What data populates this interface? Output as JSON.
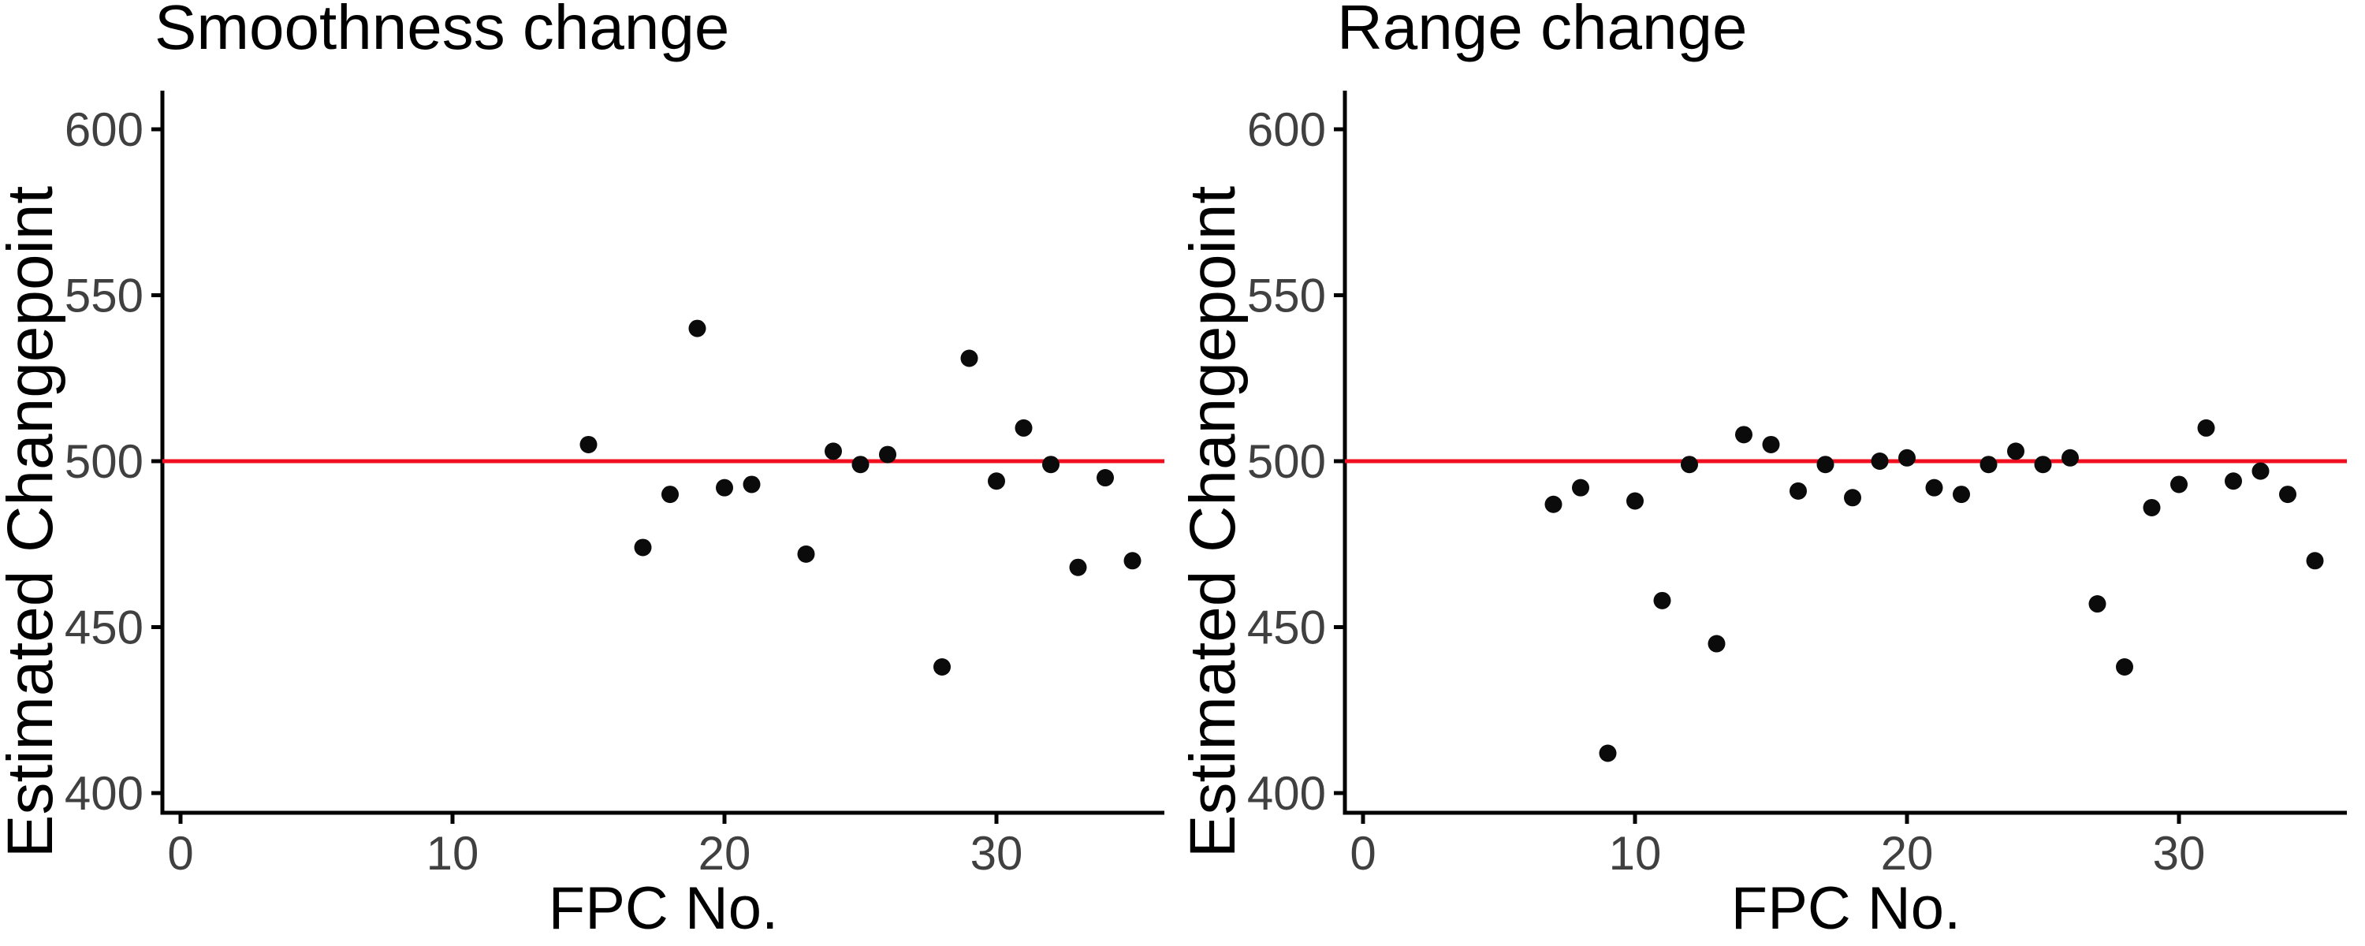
{
  "figure": {
    "background": "#ffffff",
    "point_color": "#0b0b0b",
    "axis_color": "#000000",
    "tick_label_color": "#404040",
    "text_color": "#000000",
    "reference_line_color": "#f10e1e",
    "x_label": "FPC No.",
    "y_label": "Estimated Changepoint"
  },
  "chart_data": [
    {
      "type": "scatter",
      "title": "Smoothness change",
      "xlabel": "FPC No.",
      "ylabel": "Estimated Changepoint",
      "x_ticks": [
        0,
        10,
        20,
        30
      ],
      "y_ticks": [
        400,
        450,
        500,
        550,
        600
      ],
      "xlim": [
        -0.7,
        36.2
      ],
      "ylim": [
        394,
        612
      ],
      "grid": false,
      "legend": false,
      "reference_line_y": 500,
      "points": [
        {
          "x": 15,
          "y": 505
        },
        {
          "x": 17,
          "y": 474
        },
        {
          "x": 18,
          "y": 490
        },
        {
          "x": 19,
          "y": 540
        },
        {
          "x": 20,
          "y": 492
        },
        {
          "x": 21,
          "y": 493
        },
        {
          "x": 23,
          "y": 472
        },
        {
          "x": 24,
          "y": 503
        },
        {
          "x": 25,
          "y": 499
        },
        {
          "x": 26,
          "y": 502
        },
        {
          "x": 28,
          "y": 438
        },
        {
          "x": 29,
          "y": 531
        },
        {
          "x": 30,
          "y": 494
        },
        {
          "x": 31,
          "y": 510
        },
        {
          "x": 32,
          "y": 499
        },
        {
          "x": 33,
          "y": 468
        },
        {
          "x": 34,
          "y": 495
        },
        {
          "x": 35,
          "y": 470
        }
      ]
    },
    {
      "type": "scatter",
      "title": "Range change",
      "xlabel": "FPC No.",
      "ylabel": "Estimated Changepoint",
      "x_ticks": [
        0,
        10,
        20,
        30
      ],
      "y_ticks": [
        400,
        450,
        500,
        550,
        600
      ],
      "xlim": [
        -0.7,
        36.2
      ],
      "ylim": [
        394,
        612
      ],
      "grid": false,
      "legend": false,
      "reference_line_y": 500,
      "points": [
        {
          "x": 7,
          "y": 487
        },
        {
          "x": 8,
          "y": 492
        },
        {
          "x": 9,
          "y": 412
        },
        {
          "x": 10,
          "y": 488
        },
        {
          "x": 11,
          "y": 458
        },
        {
          "x": 12,
          "y": 499
        },
        {
          "x": 13,
          "y": 445
        },
        {
          "x": 14,
          "y": 508
        },
        {
          "x": 15,
          "y": 505
        },
        {
          "x": 16,
          "y": 491
        },
        {
          "x": 17,
          "y": 499
        },
        {
          "x": 18,
          "y": 489
        },
        {
          "x": 19,
          "y": 500
        },
        {
          "x": 20,
          "y": 501
        },
        {
          "x": 21,
          "y": 492
        },
        {
          "x": 22,
          "y": 490
        },
        {
          "x": 23,
          "y": 499
        },
        {
          "x": 24,
          "y": 503
        },
        {
          "x": 25,
          "y": 499
        },
        {
          "x": 26,
          "y": 501
        },
        {
          "x": 27,
          "y": 457
        },
        {
          "x": 28,
          "y": 438
        },
        {
          "x": 29,
          "y": 486
        },
        {
          "x": 30,
          "y": 493
        },
        {
          "x": 31,
          "y": 510
        },
        {
          "x": 32,
          "y": 494
        },
        {
          "x": 33,
          "y": 497
        },
        {
          "x": 34,
          "y": 490
        },
        {
          "x": 35,
          "y": 470
        }
      ]
    }
  ]
}
